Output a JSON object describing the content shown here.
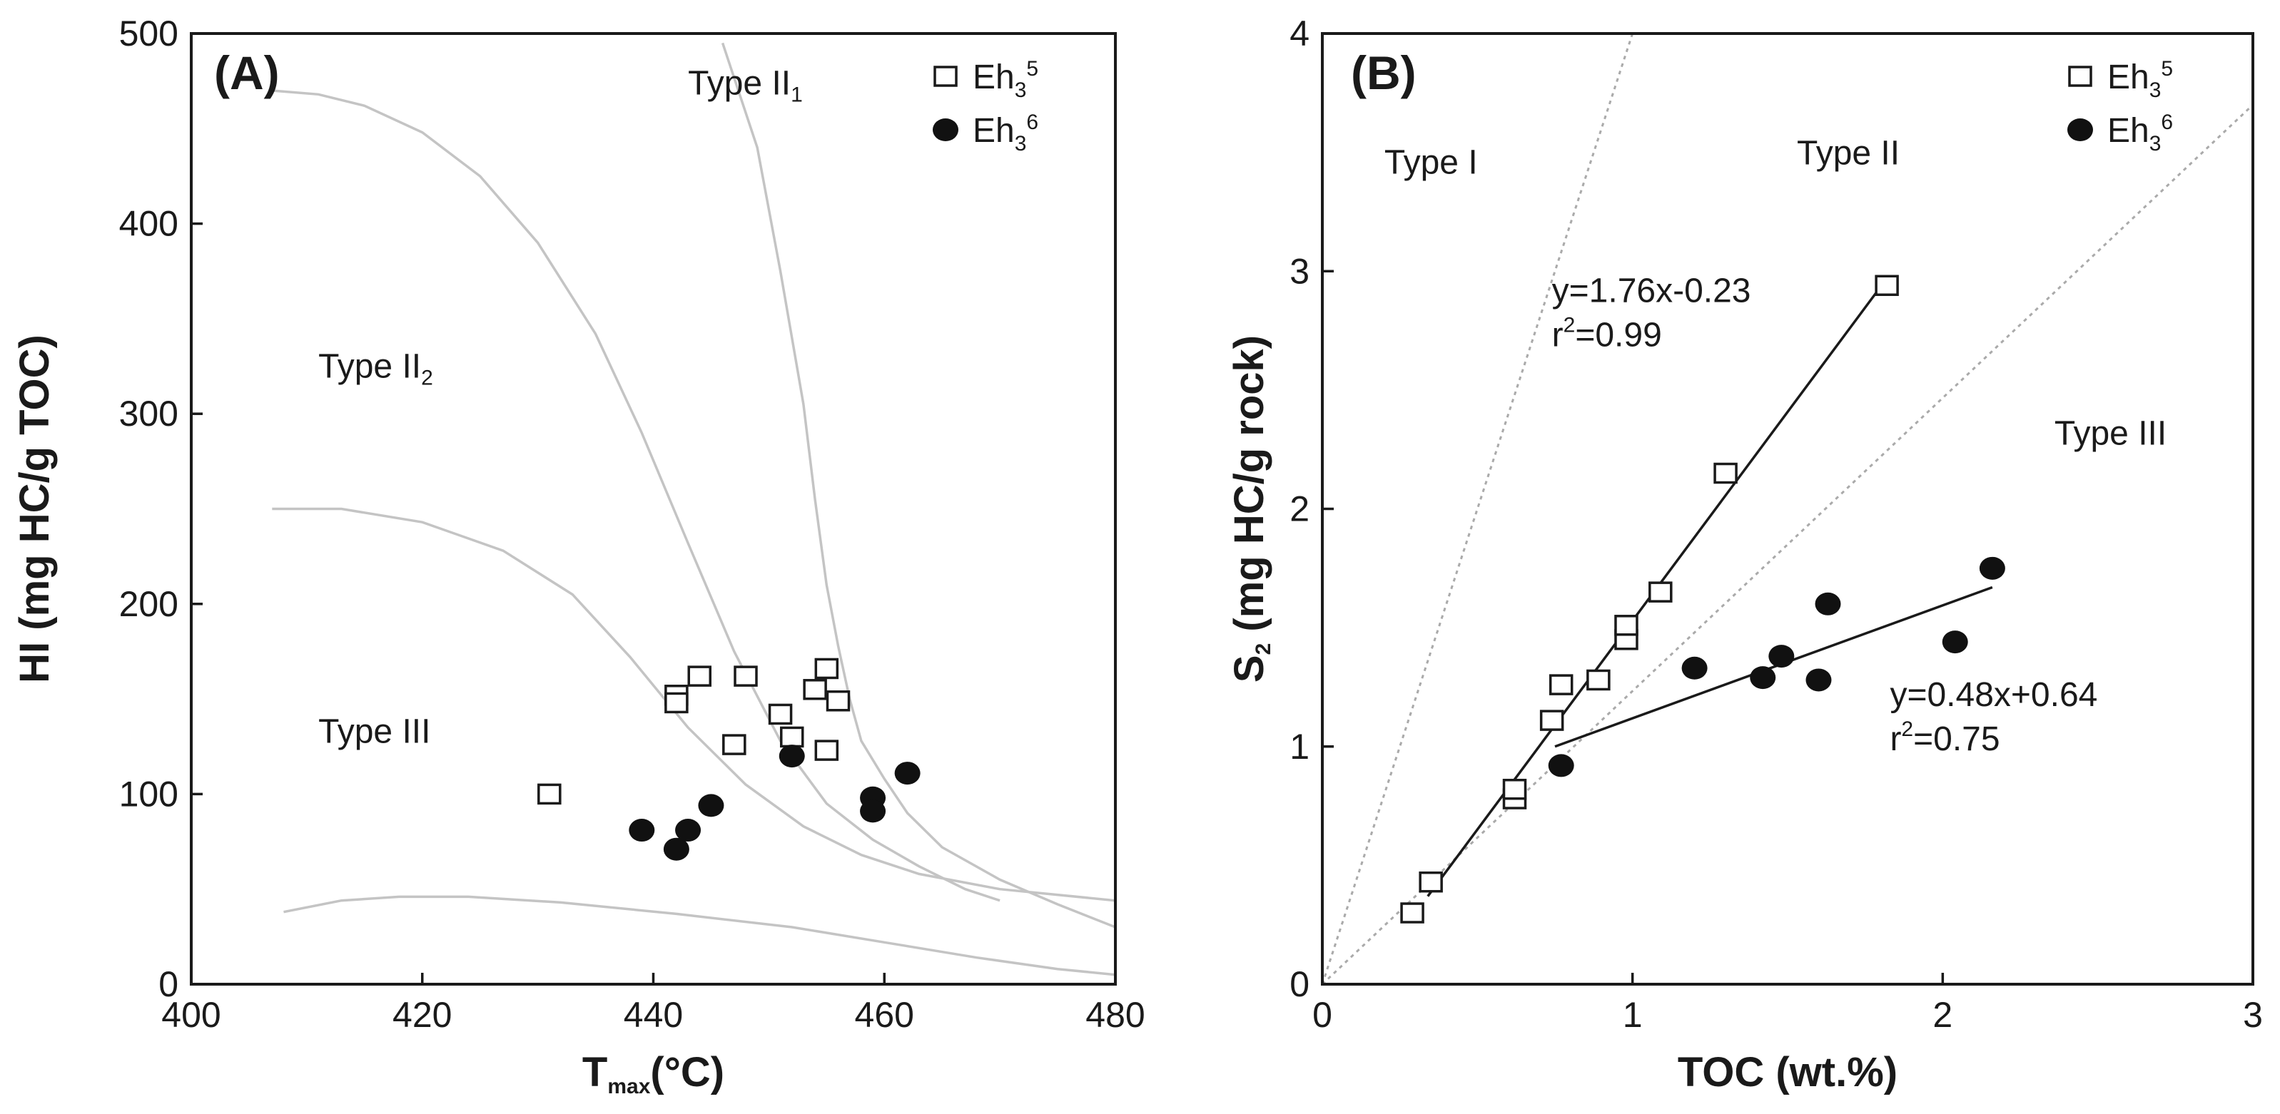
{
  "chart_data": [
    {
      "panel": "(A)",
      "type": "scatter",
      "xlabel": {
        "base": "T",
        "sub": "max",
        "rest": "(°C)"
      },
      "ylabel": "HI (mg HC/g TOC)",
      "xlim": [
        400,
        480
      ],
      "ylim": [
        0,
        500
      ],
      "xticks": [
        400,
        420,
        440,
        460,
        480
      ],
      "yticks": [
        0,
        100,
        200,
        300,
        400,
        500
      ],
      "legend": [
        {
          "marker": "square",
          "base": "Eh",
          "sub": "3",
          "sup": "5"
        },
        {
          "marker": "circle",
          "base": "Eh",
          "sub": "3",
          "sup": "6"
        }
      ],
      "series": [
        {
          "name": "Eh3^5",
          "marker": "square",
          "points": [
            [
              431,
              100
            ],
            [
              442,
              152
            ],
            [
              442,
              148
            ],
            [
              444,
              162
            ],
            [
              447,
              126
            ],
            [
              448,
              162
            ],
            [
              451,
              142
            ],
            [
              452,
              130
            ],
            [
              454,
              155
            ],
            [
              455,
              166
            ],
            [
              455,
              123
            ],
            [
              456,
              149
            ]
          ]
        },
        {
          "name": "Eh3^6",
          "marker": "circle",
          "points": [
            [
              439,
              81
            ],
            [
              442,
              71
            ],
            [
              443,
              81
            ],
            [
              445,
              94
            ],
            [
              452,
              120
            ],
            [
              459,
              98
            ],
            [
              459,
              91
            ],
            [
              462,
              111
            ]
          ]
        }
      ],
      "boundaries": [
        [
          [
            407,
            470
          ],
          [
            411,
            468
          ],
          [
            415,
            462
          ],
          [
            420,
            448
          ],
          [
            425,
            425
          ],
          [
            430,
            390
          ],
          [
            435,
            342
          ],
          [
            439,
            290
          ],
          [
            443,
            232
          ],
          [
            447,
            175
          ],
          [
            451,
            128
          ],
          [
            455,
            95
          ],
          [
            459,
            76
          ],
          [
            463,
            62
          ],
          [
            467,
            50
          ],
          [
            470,
            44
          ]
        ],
        [
          [
            446,
            495
          ],
          [
            449,
            440
          ],
          [
            451,
            375
          ],
          [
            453,
            305
          ],
          [
            454,
            255
          ],
          [
            455,
            210
          ],
          [
            456,
            178
          ],
          [
            457,
            150
          ],
          [
            458,
            128
          ],
          [
            460,
            108
          ],
          [
            462,
            90
          ],
          [
            465,
            72
          ],
          [
            470,
            55
          ],
          [
            475,
            42
          ],
          [
            480,
            30
          ]
        ],
        [
          [
            407,
            250
          ],
          [
            413,
            250
          ],
          [
            420,
            243
          ],
          [
            427,
            228
          ],
          [
            433,
            205
          ],
          [
            438,
            172
          ],
          [
            443,
            135
          ],
          [
            448,
            105
          ],
          [
            453,
            83
          ],
          [
            458,
            68
          ],
          [
            463,
            58
          ],
          [
            470,
            50
          ],
          [
            480,
            44
          ]
        ],
        [
          [
            408,
            38
          ],
          [
            413,
            44
          ],
          [
            418,
            46
          ],
          [
            424,
            46
          ],
          [
            432,
            43
          ],
          [
            442,
            37
          ],
          [
            452,
            30
          ],
          [
            460,
            22
          ],
          [
            468,
            14
          ],
          [
            475,
            8
          ],
          [
            480,
            5
          ]
        ]
      ],
      "region_labels": [
        {
          "base": "Type II",
          "sub": "1",
          "at": [
            443,
            468
          ]
        },
        {
          "base": "Type II",
          "sub": "2",
          "at": [
            411,
            319
          ]
        },
        {
          "base": "Type III",
          "sub": "",
          "at": [
            411,
            127
          ]
        }
      ]
    },
    {
      "panel": "(B)",
      "type": "scatter",
      "xlabel": "TOC (wt.%)",
      "ylabel": {
        "base": "S",
        "sub": "2",
        "rest": " (mg HC/g rock)"
      },
      "xlim": [
        0,
        3
      ],
      "ylim": [
        0,
        4
      ],
      "xticks": [
        0,
        1,
        2,
        3
      ],
      "yticks": [
        0,
        1,
        2,
        3,
        4
      ],
      "legend": [
        {
          "marker": "square",
          "base": "Eh",
          "sub": "3",
          "sup": "5"
        },
        {
          "marker": "circle",
          "base": "Eh",
          "sub": "3",
          "sup": "6"
        }
      ],
      "series": [
        {
          "name": "Eh3^5",
          "marker": "square",
          "points": [
            [
              0.29,
              0.3
            ],
            [
              0.35,
              0.43
            ],
            [
              0.62,
              0.78
            ],
            [
              0.62,
              0.82
            ],
            [
              0.74,
              1.11
            ],
            [
              0.77,
              1.26
            ],
            [
              0.89,
              1.28
            ],
            [
              0.98,
              1.45
            ],
            [
              0.98,
              1.51
            ],
            [
              1.09,
              1.65
            ],
            [
              1.3,
              2.15
            ],
            [
              1.82,
              2.94
            ]
          ]
        },
        {
          "name": "Eh3^6",
          "marker": "circle",
          "points": [
            [
              0.77,
              0.92
            ],
            [
              1.2,
              1.33
            ],
            [
              1.42,
              1.29
            ],
            [
              1.48,
              1.38
            ],
            [
              1.6,
              1.28
            ],
            [
              1.63,
              1.6
            ],
            [
              2.04,
              1.44
            ],
            [
              2.16,
              1.75
            ]
          ]
        }
      ],
      "fit_lines": [
        {
          "series": "Eh3^5",
          "from": [
            0.34,
            0.37
          ],
          "to": [
            1.82,
            2.97
          ]
        },
        {
          "series": "Eh3^6",
          "from": [
            0.75,
            1.0
          ],
          "to": [
            2.16,
            1.67
          ]
        }
      ],
      "reference_lines": [
        {
          "from": [
            0,
            0
          ],
          "to": [
            1.0,
            4.0
          ]
        },
        {
          "from": [
            0,
            0
          ],
          "to": [
            3.0,
            3.7
          ]
        }
      ],
      "annotations": {
        "fit1_eq": "y=1.76x-0.23",
        "fit1_r2": {
          "base": "r",
          "sup": "2",
          "rest": "=0.99"
        },
        "fit2_eq": "y=0.48x+0.64",
        "fit2_r2": {
          "base": "r",
          "sup": "2",
          "rest": "=0.75"
        },
        "fit1_at": [
          0.74,
          2.87
        ],
        "fit2_at": [
          1.83,
          1.17
        ]
      },
      "region_labels": [
        {
          "base": "Type I",
          "sub": "",
          "at": [
            0.2,
            3.41
          ]
        },
        {
          "base": "Type II",
          "sub": "",
          "at": [
            1.53,
            3.45
          ]
        },
        {
          "base": "Type III",
          "sub": "",
          "at": [
            2.36,
            2.27
          ]
        }
      ]
    }
  ]
}
